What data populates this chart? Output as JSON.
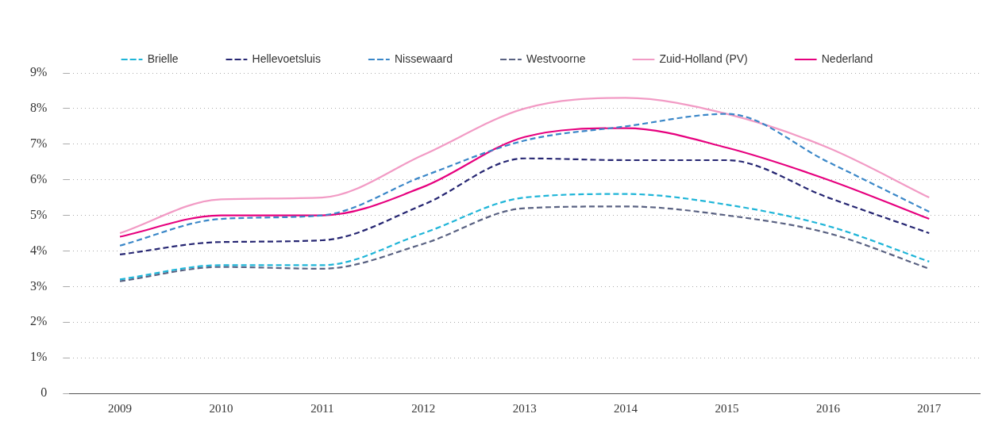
{
  "chart_data": {
    "type": "line",
    "categories": [
      "2009",
      "2010",
      "2011",
      "2012",
      "2013",
      "2014",
      "2015",
      "2016",
      "2017"
    ],
    "series": [
      {
        "name": "Brielle",
        "color": "#1fb5d8",
        "line_style": "dashed",
        "values": [
          3.2,
          3.6,
          3.6,
          4.5,
          5.5,
          5.6,
          5.3,
          4.7,
          3.7
        ]
      },
      {
        "name": "Hellevoetsluis",
        "color": "#262672",
        "line_style": "dashed",
        "values": [
          3.9,
          4.25,
          4.3,
          5.3,
          6.6,
          6.55,
          6.55,
          5.5,
          4.5
        ]
      },
      {
        "name": "Nissewaard",
        "color": "#3a87c8",
        "line_style": "dashed",
        "values": [
          4.15,
          4.9,
          5.0,
          6.1,
          7.1,
          7.5,
          7.85,
          6.5,
          5.1
        ]
      },
      {
        "name": "Westvoorne",
        "color": "#5a6282",
        "line_style": "dashed",
        "values": [
          3.15,
          3.55,
          3.5,
          4.2,
          5.2,
          5.25,
          5.0,
          4.5,
          3.5
        ]
      },
      {
        "name": "Zuid-Holland (PV)",
        "color": "#f29bc5",
        "line_style": "solid",
        "values": [
          4.5,
          5.45,
          5.5,
          6.7,
          8.0,
          8.3,
          7.85,
          6.9,
          5.5
        ]
      },
      {
        "name": "Nederland",
        "color": "#e6007e",
        "line_style": "solid",
        "values": [
          4.4,
          5.0,
          5.0,
          5.8,
          7.2,
          7.45,
          6.9,
          6.0,
          4.9
        ]
      }
    ],
    "ylim": [
      0,
      9
    ],
    "yticks": [
      0,
      {
        "value": 1,
        "label": "1%"
      },
      {
        "value": 2,
        "label": "2%"
      },
      {
        "value": 3,
        "label": "3%"
      },
      {
        "value": 4,
        "label": "4%"
      },
      {
        "value": 5,
        "label": "5%"
      },
      {
        "value": 6,
        "label": "6%"
      },
      {
        "value": 7,
        "label": "7%"
      },
      {
        "value": 8,
        "label": "8%"
      },
      {
        "value": 9,
        "label": "9%"
      }
    ],
    "grid": "y",
    "legend": "top",
    "marker": "none"
  }
}
